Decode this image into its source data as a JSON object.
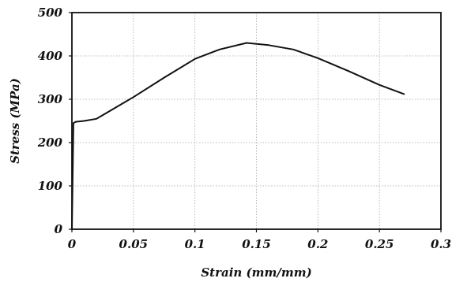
{
  "chart_data": {
    "type": "line",
    "title": "",
    "xlabel": "Strain (mm/mm)",
    "ylabel": "Stress (MPa)",
    "xlim": [
      0,
      0.3
    ],
    "ylim": [
      0,
      500
    ],
    "x_ticks": [
      0,
      0.05,
      0.1,
      0.15,
      0.2,
      0.25,
      0.3
    ],
    "x_tick_labels": [
      "0",
      "0.05",
      "0.1",
      "0.15",
      "0.2",
      "0.25",
      "0.3"
    ],
    "y_ticks": [
      0,
      100,
      200,
      300,
      400,
      500
    ],
    "y_tick_labels": [
      "0",
      "100",
      "200",
      "300",
      "400",
      "500"
    ],
    "grid": true,
    "legend": "none",
    "series": [
      {
        "x": [
          0,
          0.0012,
          0.003,
          0.01,
          0.02,
          0.05,
          0.075,
          0.1,
          0.12,
          0.142,
          0.16,
          0.18,
          0.2,
          0.225,
          0.25,
          0.27
        ],
        "y": [
          0,
          245,
          248,
          250,
          255,
          305,
          350,
          393,
          415,
          430,
          425,
          415,
          395,
          365,
          333,
          312
        ]
      }
    ],
    "colors": {
      "line": "#111111",
      "grid": "#a8a8a8",
      "frame": "#111111"
    }
  }
}
